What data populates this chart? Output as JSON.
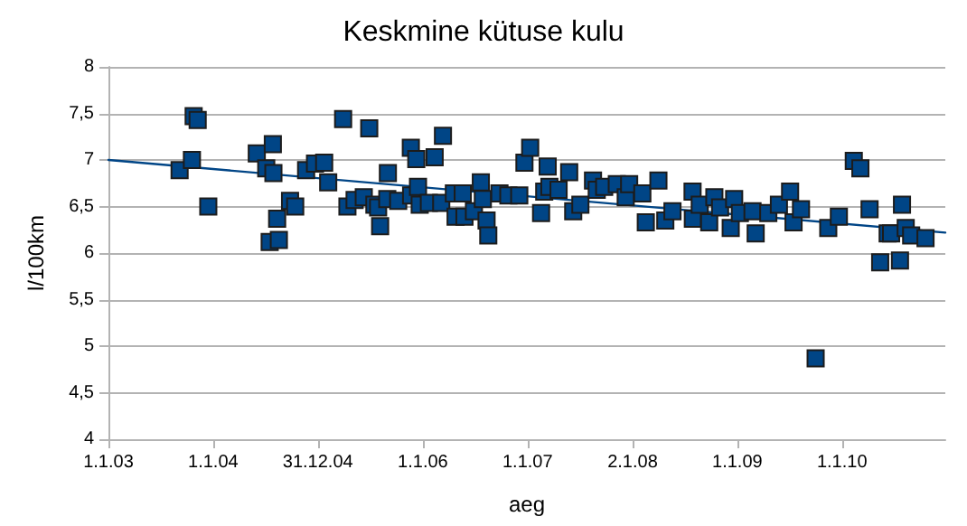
{
  "chart_data": {
    "type": "scatter",
    "title": "Keskmine kütuse kulu",
    "xlabel": "aeg",
    "ylabel": "l/100km",
    "xlim": [
      "2003-01-01",
      "2010-12-27"
    ],
    "xticks": [
      {
        "value": "2003-01-01",
        "label": "1.1.03"
      },
      {
        "value": "2004-01-01",
        "label": "1.1.04"
      },
      {
        "value": "2004-12-31",
        "label": "31.12.04"
      },
      {
        "value": "2006-01-01",
        "label": "1.1.06"
      },
      {
        "value": "2007-01-01",
        "label": "1.1.07"
      },
      {
        "value": "2008-01-02",
        "label": "2.1.08"
      },
      {
        "value": "2009-01-01",
        "label": "1.1.09"
      },
      {
        "value": "2010-01-01",
        "label": "1.1.10"
      }
    ],
    "ylim": [
      4,
      8
    ],
    "yticks": [
      4,
      {
        "value": 4.5,
        "label": "4,5"
      },
      5,
      {
        "value": 5.5,
        "label": "5,5"
      },
      6,
      {
        "value": 6.5,
        "label": "6,5"
      },
      7,
      {
        "value": 7.5,
        "label": "7,5"
      },
      8
    ],
    "grid": "y",
    "marker": "square",
    "series": [
      {
        "color": "#004586",
        "x": [
          "2003-09-06",
          "2003-10-19",
          "2003-10-25",
          "2003-11-08",
          "2003-12-15",
          "2004-06-01",
          "2004-07-04",
          "2004-07-16",
          "2004-07-27",
          "2004-07-29",
          "2004-08-11",
          "2004-08-17",
          "2004-09-25",
          "2004-10-13",
          "2004-11-20",
          "2004-12-21",
          "2005-01-22",
          "2005-02-05",
          "2005-03-29",
          "2005-04-13",
          "2005-05-08",
          "2005-06-09",
          "2005-06-28",
          "2005-07-16",
          "2005-07-29",
          "2005-08-05",
          "2005-08-30",
          "2005-09-01",
          "2005-10-07",
          "2005-11-20",
          "2005-11-21",
          "2005-12-09",
          "2005-12-15",
          "2005-12-21",
          "2006-01-22",
          "2006-02-11",
          "2006-03-06",
          "2006-03-12",
          "2006-04-19",
          "2006-04-25",
          "2006-05-20",
          "2006-05-26",
          "2006-06-28",
          "2006-07-22",
          "2006-07-29",
          "2006-08-11",
          "2006-08-17",
          "2006-09-25",
          "2006-10-26",
          "2006-12-03",
          "2006-12-21",
          "2007-01-10",
          "2007-02-17",
          "2007-02-28",
          "2007-03-12",
          "2007-03-18",
          "2007-04-19",
          "2007-05-26",
          "2007-06-09",
          "2007-07-04",
          "2007-08-17",
          "2007-08-30",
          "2007-09-25",
          "2007-11-08",
          "2007-12-09",
          "2007-12-21",
          "2008-02-05",
          "2008-02-17",
          "2008-04-01",
          "2008-04-25",
          "2008-05-20",
          "2008-07-29",
          "2008-07-30",
          "2008-08-23",
          "2008-09-25",
          "2008-10-13",
          "2008-11-02",
          "2008-12-09",
          "2008-12-21",
          "2009-01-10",
          "2009-02-23",
          "2009-03-06",
          "2009-04-19",
          "2009-05-26",
          "2009-07-04",
          "2009-07-16",
          "2009-08-11",
          "2009-10-01",
          "2009-11-14",
          "2009-12-21",
          "2010-02-11",
          "2010-03-06",
          "2010-04-07",
          "2010-05-14",
          "2010-06-09",
          "2010-06-21",
          "2010-07-22",
          "2010-07-29",
          "2010-08-11",
          "2010-08-30",
          "2010-10-19"
        ],
        "values": [
          6.89,
          7.0,
          7.47,
          7.43,
          6.5,
          7.07,
          6.91,
          6.12,
          7.17,
          6.86,
          6.37,
          6.14,
          6.56,
          6.5,
          6.89,
          6.96,
          6.97,
          6.76,
          7.44,
          6.5,
          6.57,
          6.6,
          7.34,
          6.52,
          6.49,
          6.29,
          6.58,
          6.86,
          6.56,
          7.13,
          6.62,
          7.01,
          6.71,
          6.52,
          6.54,
          7.03,
          6.54,
          7.26,
          6.64,
          6.39,
          6.64,
          6.39,
          6.45,
          6.76,
          6.58,
          6.35,
          6.19,
          6.64,
          6.62,
          6.62,
          6.97,
          7.13,
          6.43,
          6.66,
          6.93,
          6.71,
          6.68,
          6.87,
          6.45,
          6.52,
          6.78,
          6.68,
          6.71,
          6.74,
          6.6,
          6.74,
          6.64,
          6.33,
          6.78,
          6.35,
          6.45,
          6.66,
          6.37,
          6.52,
          6.33,
          6.6,
          6.49,
          6.27,
          6.58,
          6.43,
          6.45,
          6.21,
          6.43,
          6.52,
          6.66,
          6.33,
          6.47,
          4.87,
          6.27,
          6.39,
          6.99,
          6.91,
          6.47,
          5.9,
          6.21,
          6.21,
          5.92,
          6.52,
          6.27,
          6.19,
          6.16
        ]
      },
      {
        "type": "line",
        "color": "#004586",
        "line_style": "solid",
        "marker": "none",
        "x": [
          "2003-01-01",
          "2010-12-27"
        ],
        "values": [
          7.0,
          6.22
        ]
      }
    ]
  }
}
